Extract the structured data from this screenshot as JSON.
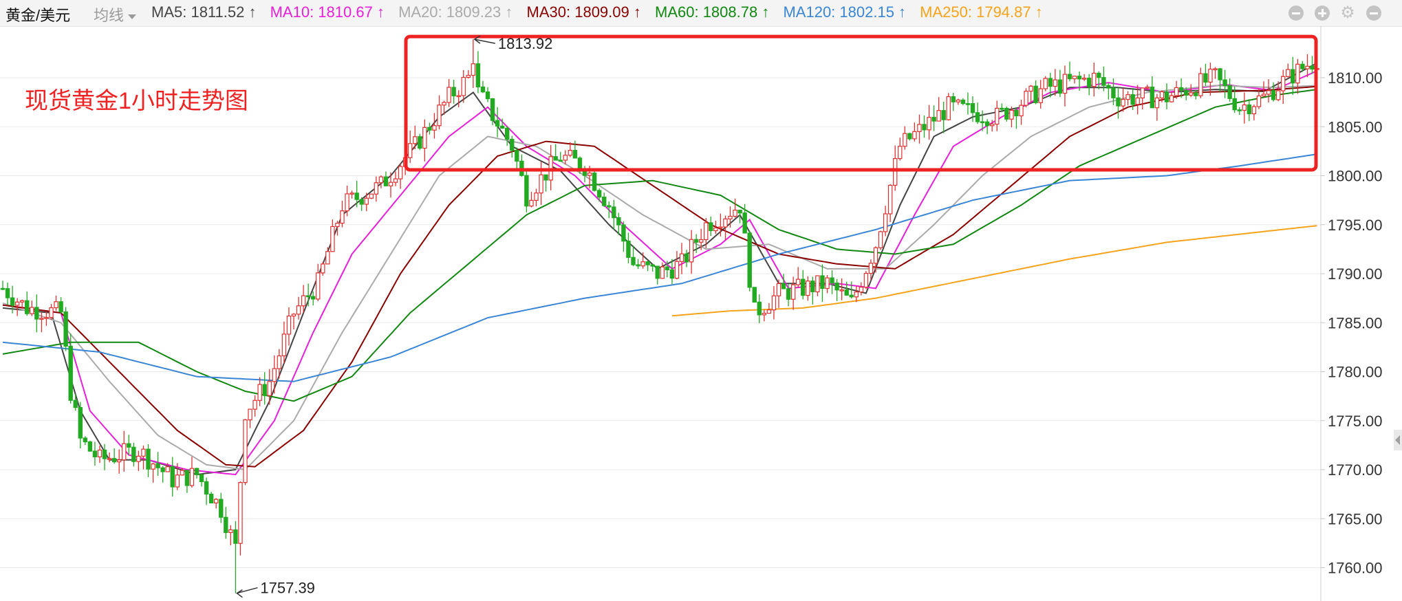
{
  "header": {
    "symbol": "黄金/美元",
    "indicator_select": "均线",
    "ma_legend": [
      {
        "label": "MA5: 1811.52 ↑",
        "color": "#444444"
      },
      {
        "label": "MA10: 1810.67 ↑",
        "color": "#e61fd8"
      },
      {
        "label": "MA20: 1809.23 ↑",
        "color": "#aaaaaa"
      },
      {
        "label": "MA30: 1809.09 ↑",
        "color": "#8b0000"
      },
      {
        "label": "MA60: 1808.78 ↑",
        "color": "#118811"
      },
      {
        "label": "MA120: 1802.15 ↑",
        "color": "#3a86d6"
      },
      {
        "label": "MA250: 1794.87 ↑",
        "color": "#f5a31a"
      }
    ],
    "controls": [
      {
        "name": "zoom-out-icon"
      },
      {
        "name": "zoom-in-icon"
      },
      {
        "name": "settings-icon"
      },
      {
        "name": "close-icon"
      }
    ]
  },
  "annotation": {
    "title": "现货黄金1小时走势图",
    "color": "#ee2222"
  },
  "chart_data": {
    "type": "candlestick",
    "timeframe": "1小时",
    "ylim": [
      1757,
      1815
    ],
    "y_ticks": [
      "1810.00",
      "1805.00",
      "1800.00",
      "1795.00",
      "1790.00",
      "1785.00",
      "1780.00",
      "1775.00",
      "1770.00",
      "1765.00",
      "1760.00"
    ],
    "up_color": "#e03030",
    "down_color": "#22aa22",
    "extremes": {
      "high": {
        "label": "1813.92",
        "value": 1813.92,
        "index": 97
      },
      "low": {
        "label": "1757.39",
        "value": 1757.39,
        "index": 48
      }
    },
    "candle_count": 272,
    "price_path": [
      [
        0,
        1788.5
      ],
      [
        5,
        1786.5
      ],
      [
        12,
        1786.0
      ],
      [
        14,
        1778
      ],
      [
        16,
        1773
      ],
      [
        20,
        1771
      ],
      [
        28,
        1772
      ],
      [
        35,
        1769
      ],
      [
        40,
        1769.5
      ],
      [
        45,
        1766
      ],
      [
        48,
        1762
      ],
      [
        50,
        1776
      ],
      [
        55,
        1779
      ],
      [
        60,
        1786
      ],
      [
        65,
        1789
      ],
      [
        70,
        1797
      ],
      [
        78,
        1799
      ],
      [
        85,
        1803
      ],
      [
        92,
        1808
      ],
      [
        96,
        1810
      ],
      [
        100,
        1807
      ],
      [
        105,
        1803
      ],
      [
        108,
        1798
      ],
      [
        115,
        1802
      ],
      [
        120,
        1801
      ],
      [
        125,
        1797
      ],
      [
        130,
        1791
      ],
      [
        135,
        1790
      ],
      [
        140,
        1791
      ],
      [
        145,
        1795
      ],
      [
        152,
        1797
      ],
      [
        155,
        1786
      ],
      [
        160,
        1788
      ],
      [
        170,
        1789
      ],
      [
        175,
        1787
      ],
      [
        180,
        1793
      ],
      [
        185,
        1803
      ],
      [
        190,
        1805
      ],
      [
        195,
        1807
      ],
      [
        205,
        1806
      ],
      [
        215,
        1809
      ],
      [
        225,
        1810
      ],
      [
        230,
        1808
      ],
      [
        240,
        1808
      ],
      [
        250,
        1810
      ],
      [
        255,
        1807
      ],
      [
        260,
        1808
      ],
      [
        265,
        1810
      ],
      [
        271,
        1812
      ]
    ],
    "series": [
      {
        "name": "MA5",
        "color": "#444444",
        "points": [
          [
            0,
            1786.5
          ],
          [
            10,
            1786.0
          ],
          [
            16,
            1776
          ],
          [
            22,
            1771
          ],
          [
            30,
            1771
          ],
          [
            40,
            1769.5
          ],
          [
            48,
            1770
          ],
          [
            55,
            1777
          ],
          [
            62,
            1786
          ],
          [
            70,
            1796
          ],
          [
            80,
            1800
          ],
          [
            90,
            1806
          ],
          [
            97,
            1808.5
          ],
          [
            105,
            1803
          ],
          [
            115,
            1800.5
          ],
          [
            125,
            1795
          ],
          [
            135,
            1790.5
          ],
          [
            145,
            1793
          ],
          [
            152,
            1796
          ],
          [
            160,
            1789
          ],
          [
            170,
            1789
          ],
          [
            178,
            1788
          ],
          [
            185,
            1797
          ],
          [
            192,
            1804
          ],
          [
            200,
            1806
          ],
          [
            210,
            1807
          ],
          [
            220,
            1809
          ],
          [
            230,
            1809
          ],
          [
            240,
            1808.5
          ],
          [
            250,
            1808.8
          ],
          [
            260,
            1808.6
          ],
          [
            271,
            1811.5
          ]
        ]
      },
      {
        "name": "MA10",
        "color": "#e61fd8",
        "points": [
          [
            0,
            1786.8
          ],
          [
            12,
            1786
          ],
          [
            18,
            1776
          ],
          [
            26,
            1771.5
          ],
          [
            38,
            1770
          ],
          [
            48,
            1769.5
          ],
          [
            56,
            1775
          ],
          [
            64,
            1784
          ],
          [
            72,
            1792
          ],
          [
            82,
            1798
          ],
          [
            92,
            1804
          ],
          [
            100,
            1807
          ],
          [
            108,
            1803
          ],
          [
            118,
            1800
          ],
          [
            128,
            1795
          ],
          [
            138,
            1790.5
          ],
          [
            148,
            1793
          ],
          [
            154,
            1795.5
          ],
          [
            162,
            1788.5
          ],
          [
            172,
            1789
          ],
          [
            180,
            1788.5
          ],
          [
            188,
            1796
          ],
          [
            196,
            1803
          ],
          [
            206,
            1806
          ],
          [
            216,
            1808.5
          ],
          [
            228,
            1809.5
          ],
          [
            240,
            1808.5
          ],
          [
            252,
            1809.3
          ],
          [
            262,
            1808.7
          ],
          [
            271,
            1810.7
          ]
        ]
      },
      {
        "name": "MA20",
        "color": "#aaaaaa",
        "points": [
          [
            0,
            1787
          ],
          [
            12,
            1785
          ],
          [
            22,
            1779
          ],
          [
            32,
            1773.5
          ],
          [
            42,
            1770.5
          ],
          [
            50,
            1770
          ],
          [
            60,
            1775
          ],
          [
            70,
            1784
          ],
          [
            80,
            1792
          ],
          [
            90,
            1800
          ],
          [
            100,
            1804
          ],
          [
            110,
            1803
          ],
          [
            120,
            1800
          ],
          [
            132,
            1796
          ],
          [
            145,
            1792.5
          ],
          [
            158,
            1793
          ],
          [
            170,
            1790.5
          ],
          [
            182,
            1790.5
          ],
          [
            192,
            1795
          ],
          [
            202,
            1800
          ],
          [
            212,
            1804
          ],
          [
            224,
            1807
          ],
          [
            236,
            1808.5
          ],
          [
            250,
            1809.2
          ],
          [
            262,
            1809.0
          ],
          [
            271,
            1809.2
          ]
        ]
      },
      {
        "name": "MA30",
        "color": "#8b0000",
        "points": [
          [
            0,
            1786.8
          ],
          [
            12,
            1786
          ],
          [
            24,
            1780
          ],
          [
            36,
            1774
          ],
          [
            46,
            1770.5
          ],
          [
            52,
            1770.3
          ],
          [
            62,
            1774
          ],
          [
            72,
            1781
          ],
          [
            82,
            1790
          ],
          [
            92,
            1797
          ],
          [
            102,
            1802
          ],
          [
            112,
            1803.5
          ],
          [
            122,
            1803
          ],
          [
            134,
            1799
          ],
          [
            146,
            1795
          ],
          [
            160,
            1792
          ],
          [
            172,
            1791
          ],
          [
            184,
            1790.5
          ],
          [
            196,
            1794
          ],
          [
            208,
            1799
          ],
          [
            220,
            1804
          ],
          [
            232,
            1807
          ],
          [
            246,
            1808.5
          ],
          [
            260,
            1808.7
          ],
          [
            271,
            1809.1
          ]
        ]
      },
      {
        "name": "MA60",
        "color": "#118811",
        "points": [
          [
            0,
            1781.8
          ],
          [
            14,
            1783
          ],
          [
            28,
            1783
          ],
          [
            40,
            1780
          ],
          [
            50,
            1778
          ],
          [
            60,
            1777
          ],
          [
            72,
            1779.5
          ],
          [
            84,
            1786
          ],
          [
            96,
            1791
          ],
          [
            108,
            1796
          ],
          [
            120,
            1799
          ],
          [
            134,
            1799.5
          ],
          [
            148,
            1798
          ],
          [
            160,
            1794.5
          ],
          [
            172,
            1792.5
          ],
          [
            184,
            1792
          ],
          [
            196,
            1793
          ],
          [
            210,
            1797
          ],
          [
            222,
            1801
          ],
          [
            236,
            1804
          ],
          [
            250,
            1807
          ],
          [
            262,
            1808.2
          ],
          [
            271,
            1808.8
          ]
        ]
      },
      {
        "name": "MA120",
        "color": "#3a86d6",
        "points": [
          [
            0,
            1783
          ],
          [
            20,
            1782
          ],
          [
            40,
            1779.5
          ],
          [
            60,
            1779
          ],
          [
            80,
            1781.5
          ],
          [
            100,
            1785.5
          ],
          [
            120,
            1787.5
          ],
          [
            140,
            1789
          ],
          [
            160,
            1792
          ],
          [
            180,
            1794.5
          ],
          [
            200,
            1797.5
          ],
          [
            220,
            1799.5
          ],
          [
            240,
            1800
          ],
          [
            255,
            1801
          ],
          [
            271,
            1802.2
          ]
        ]
      },
      {
        "name": "MA250",
        "color": "#f5a31a",
        "start": 138,
        "points": [
          [
            138,
            1785.7
          ],
          [
            150,
            1786.2
          ],
          [
            165,
            1786.5
          ],
          [
            180,
            1787.5
          ],
          [
            200,
            1789.5
          ],
          [
            220,
            1791.5
          ],
          [
            240,
            1793.2
          ],
          [
            260,
            1794.3
          ],
          [
            271,
            1794.9
          ]
        ]
      }
    ]
  }
}
